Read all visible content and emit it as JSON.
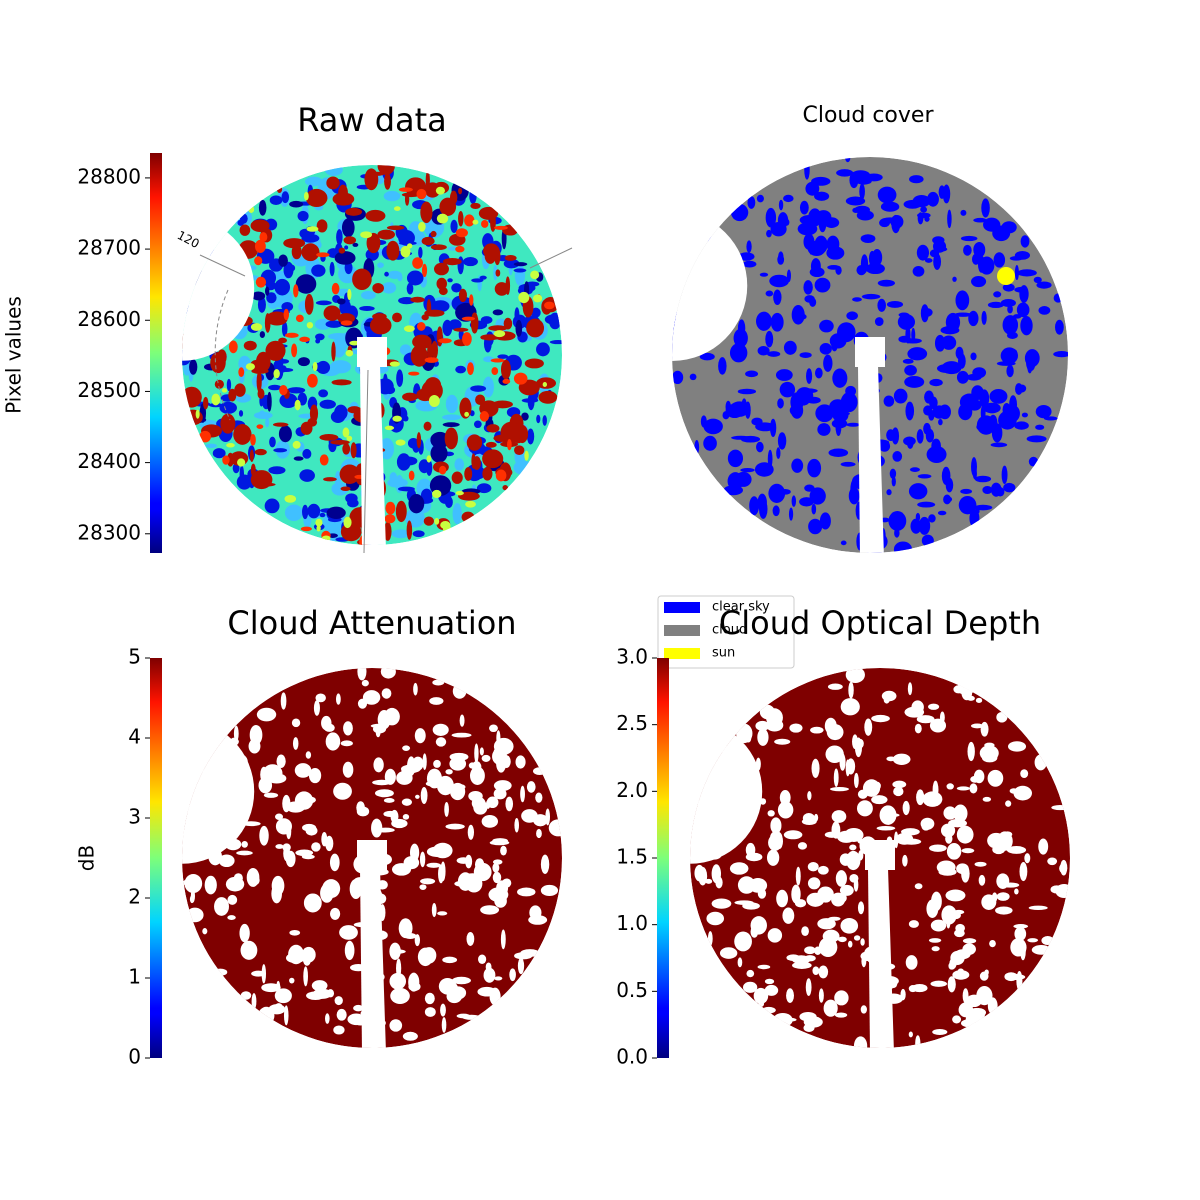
{
  "chart_data": [
    {
      "type": "heatmap",
      "title": "Raw data",
      "colorbar_label": "Pixel values",
      "colormap": "jet",
      "clim": [
        28273,
        28835
      ],
      "cticks": [
        28300,
        28400,
        28500,
        28600,
        28700,
        28800
      ],
      "annotations": [
        "120"
      ]
    },
    {
      "type": "categorical",
      "title": "Cloud cover",
      "legend": [
        {
          "name": "clear sky",
          "color": "#0000ff"
        },
        {
          "name": "cloud",
          "color": "#808080"
        },
        {
          "name": "sun",
          "color": "#ffff00"
        }
      ]
    },
    {
      "type": "heatmap",
      "title": "Cloud Attenuation",
      "colorbar_label": "dB",
      "colormap": "jet",
      "clim": [
        0,
        5
      ],
      "cticks": [
        0,
        1,
        2,
        3,
        4,
        5
      ]
    },
    {
      "type": "heatmap",
      "title": "Cloud Optical Depth",
      "colormap": "jet",
      "clim": [
        0,
        3
      ],
      "cticks": [
        {
          "value": 0,
          "label": "0.0"
        },
        {
          "value": 0.5,
          "label": "0.5"
        },
        {
          "value": 1,
          "label": "1.0"
        },
        {
          "value": 1.5,
          "label": "1.5"
        },
        {
          "value": 2,
          "label": "2.0"
        },
        {
          "value": 2.5,
          "label": "2.5"
        },
        {
          "value": 3,
          "label": "3.0"
        }
      ]
    }
  ]
}
